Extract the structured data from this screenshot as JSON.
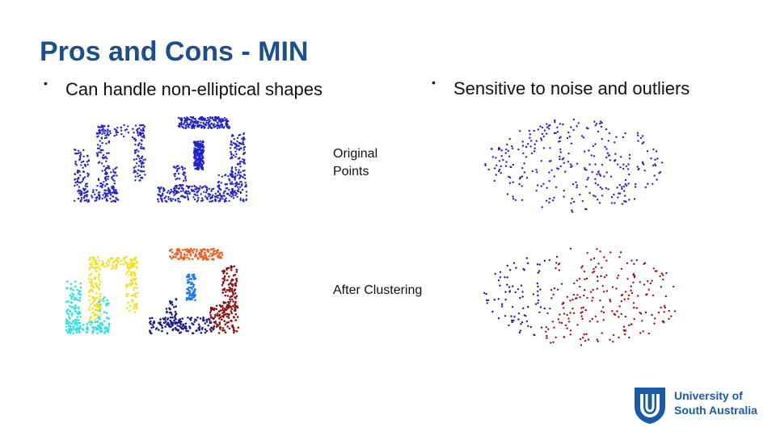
{
  "slide": {
    "title": "Pros and Cons - MIN",
    "left_bullet": "Can handle non-elliptical shapes",
    "right_bullet": "Sensitive to noise and outliers",
    "label_original_line1": "Original",
    "label_original_line2": "Points",
    "label_after": "After Clustering"
  },
  "logo": {
    "line1": "University of",
    "line2": "South Australia",
    "color": "#1b5aa6"
  },
  "colors": {
    "title": "#1f4e8c",
    "original_points": "#2222cc",
    "cluster_cyan": "#33e0e0",
    "cluster_yellow": "#f0e020",
    "cluster_orange": "#f06020",
    "cluster_lightblue": "#2277ee",
    "cluster_navy": "#1a1a8c",
    "cluster_darkred": "#8c1010",
    "noise_blue": "#1a1a9c",
    "noise_red": "#9c1010"
  }
}
